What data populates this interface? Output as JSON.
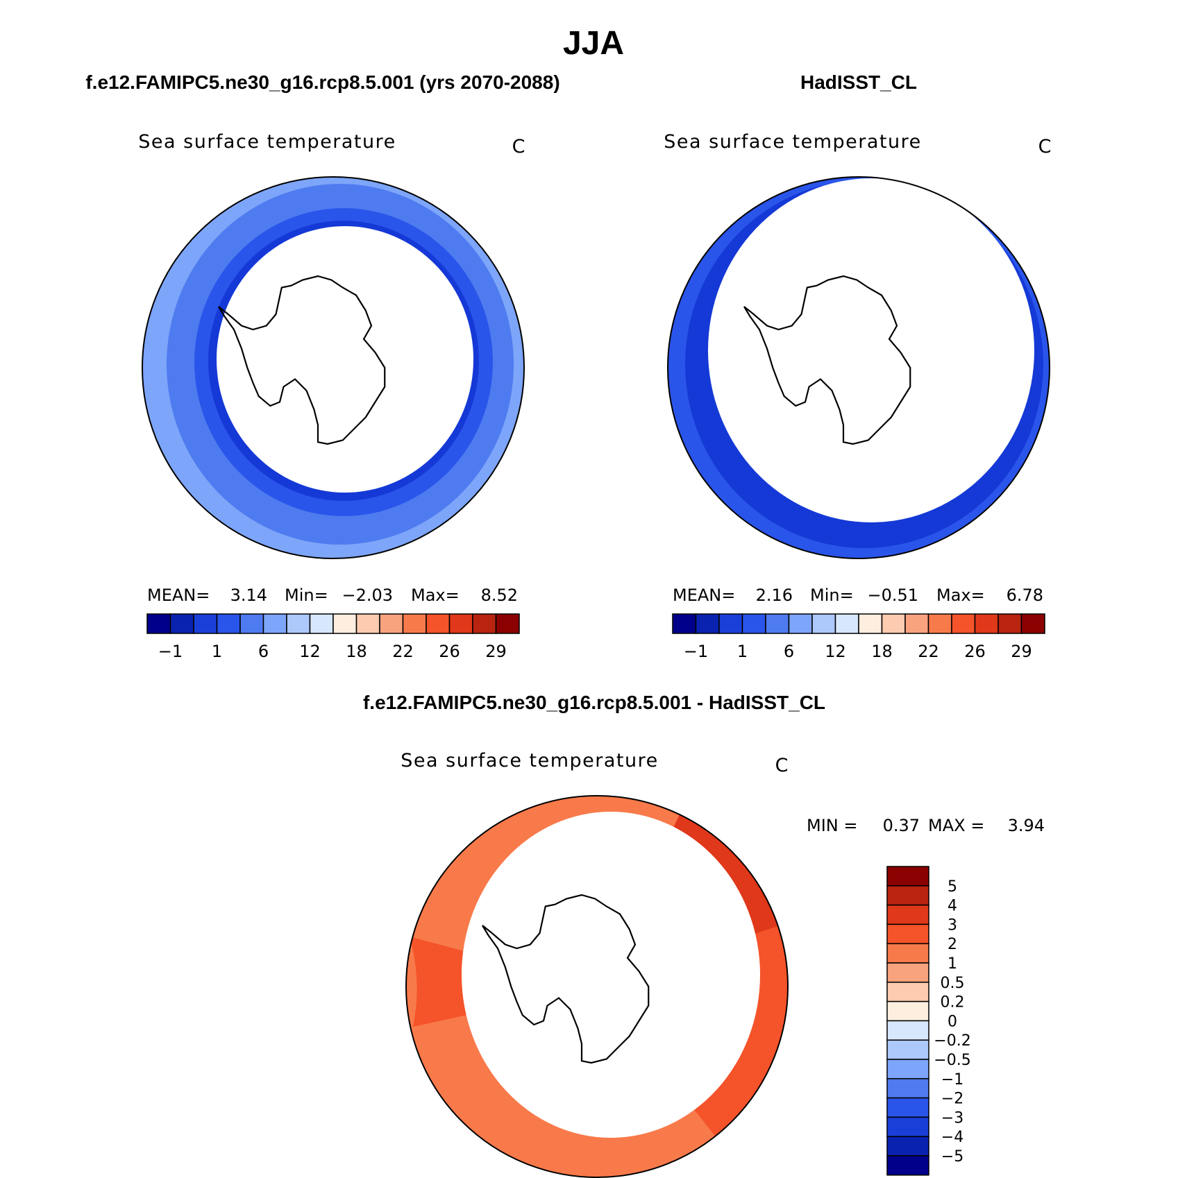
{
  "figure": {
    "season": "JJA"
  },
  "panels": [
    {
      "case": "f.e12.FAMIPC5.ne30_g16.rcp8.5.001 (yrs 2070-2088)",
      "variable": "Sea surface temperature",
      "units": "C",
      "stats": {
        "mean_label": "MEAN=",
        "mean": "3.14",
        "min_label": "Min=",
        "min": "−2.03",
        "max_label": "Max=",
        "max": "8.52"
      },
      "map_rings": [
        {
          "level": "1 to 6",
          "color": "#7da5f9"
        },
        {
          "level": "6 to 12 band A",
          "color": "#4f7bf0"
        },
        {
          "level": "1 to 6 band B",
          "color": "#2a55ea"
        },
        {
          "level": "-1 to 1",
          "color": "#1539d6"
        }
      ]
    },
    {
      "case": "HadISST_CL",
      "variable": "Sea surface temperature",
      "units": "C",
      "stats": {
        "mean_label": "MEAN=",
        "mean": "2.16",
        "min_label": "Min=",
        "min": "−0.51",
        "max_label": "Max=",
        "max": "6.78"
      },
      "map_rings": [
        {
          "level": "1 to 6",
          "color": "#2a55ea"
        },
        {
          "level": "-1 to 1",
          "color": "#1539d6"
        }
      ]
    }
  ],
  "diff_panel": {
    "title": "f.e12.FAMIPC5.ne30_g16.rcp8.5.001 - HadISST_CL",
    "variable": "Sea surface temperature",
    "units": "C",
    "stats": {
      "min_label": "MIN =",
      "min": "0.37",
      "max_label": "MAX =",
      "max": "3.94"
    },
    "map_rings": [
      {
        "level": "1 to 2",
        "color": "#f87a4a"
      },
      {
        "level": "2 to 3",
        "color": "#f5532a"
      },
      {
        "level": "3 to 4",
        "color": "#e0381a"
      }
    ]
  },
  "colorbars": {
    "abs": {
      "colors": [
        "#00008b",
        "#0a22b0",
        "#1a3fd8",
        "#2a55ea",
        "#4f7bf0",
        "#7da5f9",
        "#adc8fb",
        "#d7e7fd",
        "#feeee0",
        "#fccbb0",
        "#f9a27e",
        "#f77a4b",
        "#f5532a",
        "#e0381a",
        "#b82410",
        "#8b0000"
      ],
      "tick_labels": [
        "−1",
        "1",
        "6",
        "12",
        "18",
        "22",
        "26",
        "29"
      ]
    },
    "diff": {
      "colors": [
        "#8b0000",
        "#b82410",
        "#e0381a",
        "#f5532a",
        "#f77a4b",
        "#f9a27e",
        "#fccbb0",
        "#feeee0",
        "#d7e7fd",
        "#adc8fb",
        "#7da5f9",
        "#4f7bf0",
        "#2a55ea",
        "#1a3fd8",
        "#0a22b0",
        "#00008b"
      ],
      "tick_labels": [
        "5",
        "4",
        "3",
        "2",
        "1",
        "0.5",
        "0.2",
        "0",
        "−0.2",
        "−0.5",
        "−1",
        "−2",
        "−3",
        "−4",
        "−5"
      ]
    }
  }
}
